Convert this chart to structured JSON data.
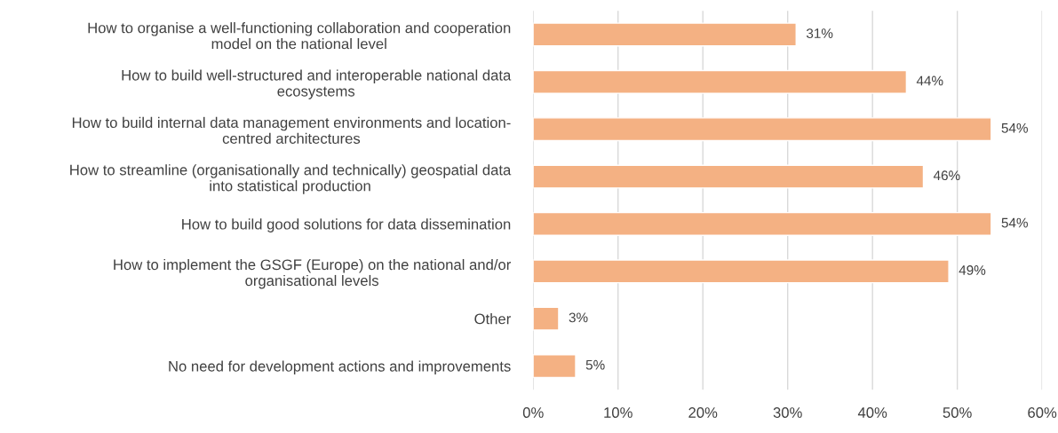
{
  "chart_data": {
    "type": "bar",
    "orientation": "horizontal",
    "categories": [
      "How to organise a well-functioning collaboration and cooperation\nmodel on the national level",
      "How to build well-structured and interoperable national data\necosystems",
      "How to build internal data management environments and location-\ncentred architectures",
      "How to streamline (organisationally and technically) geospatial data\ninto statistical production",
      "How to build good solutions for data dissemination",
      "How to implement the GSGF (Europe) on the national and/or\norganisational levels",
      "Other",
      "No need for development actions and improvements"
    ],
    "values": [
      31,
      44,
      54,
      46,
      54,
      49,
      3,
      5
    ],
    "value_labels": [
      "31%",
      "44%",
      "54%",
      "46%",
      "54%",
      "49%",
      "3%",
      "5%"
    ],
    "color": "#f4b183",
    "xlim": [
      0,
      60
    ],
    "xticks": [
      {
        "value": 0,
        "label": "0%"
      },
      {
        "value": 10,
        "label": "10%"
      },
      {
        "value": 20,
        "label": "20%"
      },
      {
        "value": 30,
        "label": "30%"
      },
      {
        "value": 40,
        "label": "40%"
      },
      {
        "value": 50,
        "label": "50%"
      },
      {
        "value": 60,
        "label": "60%"
      }
    ],
    "grid": "x"
  }
}
